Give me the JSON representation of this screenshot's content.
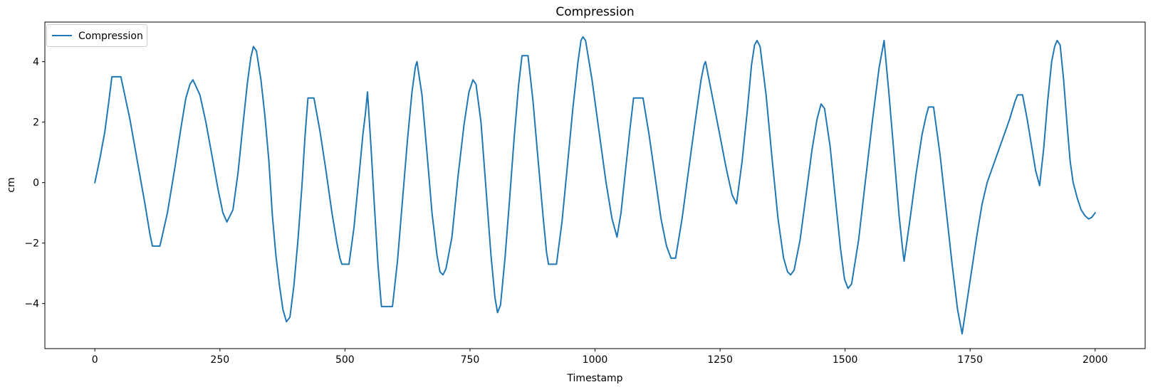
{
  "figure": {
    "background": "#ffffff",
    "spine_color": "#000000"
  },
  "legend": {
    "border_color": "#cccccc",
    "background": "#ffffff"
  },
  "chart_data": {
    "type": "line",
    "title": "Compression",
    "xlabel": "Timestamp",
    "ylabel": "cm",
    "legend_entries": [
      "Compression"
    ],
    "legend_position": "upper left",
    "grid": false,
    "xlim": [
      -100,
      2100
    ],
    "ylim": [
      -5.49,
      5.31
    ],
    "x_ticks": [
      {
        "value": 0,
        "label": "0"
      },
      {
        "value": 250,
        "label": "250"
      },
      {
        "value": 500,
        "label": "500"
      },
      {
        "value": 750,
        "label": "750"
      },
      {
        "value": 1000,
        "label": "1000"
      },
      {
        "value": 1250,
        "label": "1250"
      },
      {
        "value": 1500,
        "label": "1500"
      },
      {
        "value": 1750,
        "label": "1750"
      },
      {
        "value": 2000,
        "label": "2000"
      }
    ],
    "y_ticks": [
      {
        "value": -4,
        "label": "−4"
      },
      {
        "value": -2,
        "label": "−2"
      },
      {
        "value": 0,
        "label": "0"
      },
      {
        "value": 2,
        "label": "2"
      },
      {
        "value": 4,
        "label": "4"
      }
    ],
    "series": [
      {
        "name": "Compression",
        "color": "#1f77b4",
        "line_width": 2,
        "points": [
          [
            0,
            0
          ],
          [
            10,
            0.8
          ],
          [
            20,
            1.7
          ],
          [
            28,
            2.7
          ],
          [
            34,
            3.5
          ],
          [
            52,
            3.5
          ],
          [
            70,
            2.1
          ],
          [
            85,
            0.7
          ],
          [
            100,
            -0.7
          ],
          [
            110,
            -1.7
          ],
          [
            115,
            -2.1
          ],
          [
            130,
            -2.1
          ],
          [
            145,
            -1.0
          ],
          [
            160,
            0.5
          ],
          [
            172,
            1.8
          ],
          [
            182,
            2.8
          ],
          [
            190,
            3.25
          ],
          [
            196,
            3.4
          ],
          [
            210,
            2.9
          ],
          [
            222,
            2.0
          ],
          [
            234,
            0.9
          ],
          [
            246,
            -0.2
          ],
          [
            256,
            -1.0
          ],
          [
            264,
            -1.3
          ],
          [
            276,
            -0.9
          ],
          [
            286,
            0.3
          ],
          [
            296,
            1.9
          ],
          [
            305,
            3.3
          ],
          [
            312,
            4.15
          ],
          [
            317,
            4.5
          ],
          [
            323,
            4.35
          ],
          [
            332,
            3.4
          ],
          [
            340,
            2.2
          ],
          [
            348,
            0.7
          ],
          [
            355,
            -1.1
          ],
          [
            362,
            -2.4
          ],
          [
            369,
            -3.4
          ],
          [
            376,
            -4.2
          ],
          [
            383,
            -4.6
          ],
          [
            390,
            -4.45
          ],
          [
            398,
            -3.4
          ],
          [
            406,
            -1.9
          ],
          [
            414,
            -0.1
          ],
          [
            420,
            1.5
          ],
          [
            426,
            2.8
          ],
          [
            438,
            2.8
          ],
          [
            450,
            1.7
          ],
          [
            462,
            0.4
          ],
          [
            474,
            -1.0
          ],
          [
            484,
            -2.0
          ],
          [
            490,
            -2.5
          ],
          [
            494,
            -2.7
          ],
          [
            508,
            -2.7
          ],
          [
            518,
            -1.5
          ],
          [
            528,
            0.2
          ],
          [
            536,
            1.6
          ],
          [
            541,
            2.3
          ],
          [
            545,
            3.0
          ],
          [
            552,
            1.2
          ],
          [
            559,
            -0.8
          ],
          [
            566,
            -2.7
          ],
          [
            573,
            -4.1
          ],
          [
            595,
            -4.1
          ],
          [
            605,
            -2.6
          ],
          [
            615,
            -0.6
          ],
          [
            625,
            1.4
          ],
          [
            634,
            3.0
          ],
          [
            641,
            3.85
          ],
          [
            644,
            4.0
          ],
          [
            654,
            2.9
          ],
          [
            664,
            1.0
          ],
          [
            674,
            -1.0
          ],
          [
            684,
            -2.4
          ],
          [
            690,
            -2.95
          ],
          [
            696,
            -3.05
          ],
          [
            702,
            -2.85
          ],
          [
            714,
            -1.8
          ],
          [
            726,
            0.2
          ],
          [
            738,
            1.9
          ],
          [
            748,
            3.0
          ],
          [
            756,
            3.4
          ],
          [
            762,
            3.25
          ],
          [
            772,
            2.0
          ],
          [
            782,
            -0.2
          ],
          [
            792,
            -2.4
          ],
          [
            800,
            -3.8
          ],
          [
            805,
            -4.3
          ],
          [
            811,
            -4.05
          ],
          [
            820,
            -2.5
          ],
          [
            829,
            -0.6
          ],
          [
            838,
            1.4
          ],
          [
            847,
            3.2
          ],
          [
            854,
            4.2
          ],
          [
            866,
            4.2
          ],
          [
            876,
            2.7
          ],
          [
            886,
            0.8
          ],
          [
            896,
            -1.1
          ],
          [
            903,
            -2.3
          ],
          [
            907,
            -2.7
          ],
          [
            923,
            -2.7
          ],
          [
            934,
            -1.3
          ],
          [
            945,
            0.6
          ],
          [
            956,
            2.5
          ],
          [
            966,
            4.0
          ],
          [
            972,
            4.7
          ],
          [
            976,
            4.82
          ],
          [
            981,
            4.7
          ],
          [
            994,
            3.4
          ],
          [
            1008,
            1.7
          ],
          [
            1022,
            0.0
          ],
          [
            1034,
            -1.2
          ],
          [
            1044,
            -1.8
          ],
          [
            1052,
            -1.0
          ],
          [
            1061,
            0.4
          ],
          [
            1070,
            1.8
          ],
          [
            1077,
            2.8
          ],
          [
            1096,
            2.8
          ],
          [
            1108,
            1.6
          ],
          [
            1120,
            0.2
          ],
          [
            1132,
            -1.2
          ],
          [
            1143,
            -2.1
          ],
          [
            1152,
            -2.5
          ],
          [
            1161,
            -2.5
          ],
          [
            1174,
            -1.2
          ],
          [
            1187,
            0.4
          ],
          [
            1200,
            2.0
          ],
          [
            1212,
            3.4
          ],
          [
            1218,
            3.9
          ],
          [
            1221,
            4.0
          ],
          [
            1234,
            2.9
          ],
          [
            1248,
            1.7
          ],
          [
            1262,
            0.5
          ],
          [
            1274,
            -0.4
          ],
          [
            1283,
            -0.7
          ],
          [
            1294,
            0.7
          ],
          [
            1304,
            2.3
          ],
          [
            1313,
            3.9
          ],
          [
            1319,
            4.55
          ],
          [
            1324,
            4.7
          ],
          [
            1330,
            4.5
          ],
          [
            1342,
            2.9
          ],
          [
            1354,
            0.8
          ],
          [
            1366,
            -1.2
          ],
          [
            1377,
            -2.5
          ],
          [
            1385,
            -2.95
          ],
          [
            1391,
            -3.05
          ],
          [
            1398,
            -2.9
          ],
          [
            1410,
            -1.9
          ],
          [
            1422,
            -0.4
          ],
          [
            1434,
            1.1
          ],
          [
            1444,
            2.1
          ],
          [
            1452,
            2.6
          ],
          [
            1459,
            2.45
          ],
          [
            1470,
            1.2
          ],
          [
            1481,
            -0.6
          ],
          [
            1491,
            -2.2
          ],
          [
            1499,
            -3.2
          ],
          [
            1506,
            -3.5
          ],
          [
            1513,
            -3.35
          ],
          [
            1527,
            -1.9
          ],
          [
            1541,
            0.1
          ],
          [
            1555,
            2.1
          ],
          [
            1568,
            3.8
          ],
          [
            1578,
            4.7
          ],
          [
            1588,
            2.9
          ],
          [
            1598,
            0.9
          ],
          [
            1608,
            -1.1
          ],
          [
            1615,
            -2.2
          ],
          [
            1618,
            -2.6
          ],
          [
            1630,
            -1.2
          ],
          [
            1642,
            0.3
          ],
          [
            1654,
            1.6
          ],
          [
            1662,
            2.2
          ],
          [
            1667,
            2.5
          ],
          [
            1677,
            2.5
          ],
          [
            1690,
            0.9
          ],
          [
            1702,
            -0.9
          ],
          [
            1714,
            -2.7
          ],
          [
            1725,
            -4.2
          ],
          [
            1734,
            -5.0
          ],
          [
            1744,
            -3.9
          ],
          [
            1754,
            -2.8
          ],
          [
            1764,
            -1.7
          ],
          [
            1774,
            -0.7
          ],
          [
            1784,
            0.0
          ],
          [
            1799,
            0.7
          ],
          [
            1814,
            1.4
          ],
          [
            1829,
            2.1
          ],
          [
            1840,
            2.7
          ],
          [
            1845,
            2.9
          ],
          [
            1855,
            2.9
          ],
          [
            1864,
            2.1
          ],
          [
            1873,
            1.2
          ],
          [
            1881,
            0.4
          ],
          [
            1889,
            -0.1
          ],
          [
            1897,
            1.1
          ],
          [
            1905,
            2.7
          ],
          [
            1913,
            4.0
          ],
          [
            1919,
            4.5
          ],
          [
            1924,
            4.7
          ],
          [
            1930,
            4.55
          ],
          [
            1937,
            3.4
          ],
          [
            1944,
            1.9
          ],
          [
            1950,
            0.7
          ],
          [
            1956,
            0.0
          ],
          [
            1964,
            -0.5
          ],
          [
            1972,
            -0.9
          ],
          [
            1980,
            -1.1
          ],
          [
            1987,
            -1.2
          ],
          [
            1993,
            -1.15
          ],
          [
            2000,
            -1.0
          ]
        ]
      }
    ]
  }
}
